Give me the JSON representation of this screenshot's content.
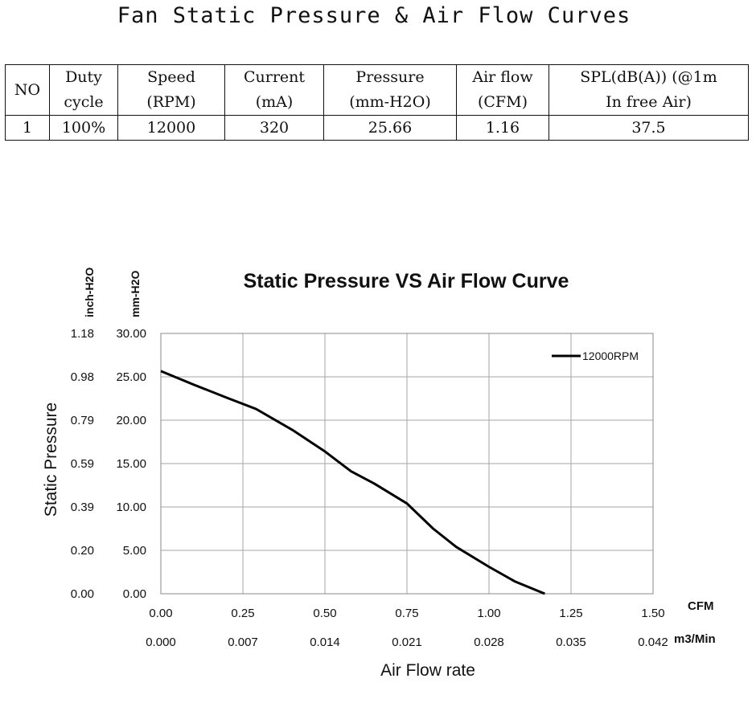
{
  "document_title": "Fan Static Pressure & Air Flow Curves",
  "spec_table": {
    "headers": [
      "NO",
      "Duty\ncycle",
      "Speed\n(RPM)",
      "Current\n(mA)",
      "Pressure\n(mm-H2O)",
      "Air flow\n(CFM)",
      "SPL(dB(A)) (@1m\nIn free Air)"
    ],
    "rows": [
      [
        "1",
        "100%",
        "12000",
        "320",
        "25.66",
        "1.16",
        "37.5"
      ]
    ]
  },
  "chart_data": {
    "type": "line",
    "title": "Static Pressure VS Air Flow Curve",
    "xlabel": "Air Flow rate",
    "ylabel": "Static Pressure",
    "x_unit_primary": "CFM",
    "x_unit_secondary": "m3/Min",
    "y_unit_primary": "mm-H2O",
    "y_unit_secondary": "inch-H2O",
    "xlim": [
      0,
      1.5
    ],
    "ylim": [
      0,
      30
    ],
    "x_ticks": [
      "0.00",
      "0.25",
      "0.50",
      "0.75",
      "1.00",
      "1.25",
      "1.50"
    ],
    "x_ticks_secondary": [
      "0.000",
      "0.007",
      "0.014",
      "0.021",
      "0.028",
      "0.035",
      "0.042"
    ],
    "y_ticks": [
      "0.00",
      "5.00",
      "10.00",
      "15.00",
      "20.00",
      "25.00",
      "30.00"
    ],
    "y_ticks_secondary": [
      "0.00",
      "0.20",
      "0.39",
      "0.59",
      "0.79",
      "0.98",
      "1.18"
    ],
    "grid": true,
    "legend_position": "top-right",
    "series": [
      {
        "name": "12000RPM",
        "color": "#000000",
        "x": [
          0.0,
          0.1,
          0.2,
          0.29,
          0.4,
          0.5,
          0.58,
          0.65,
          0.75,
          0.83,
          0.9,
          1.0,
          1.08,
          1.17
        ],
        "y": [
          25.66,
          24.1,
          22.6,
          21.3,
          18.9,
          16.4,
          14.1,
          12.7,
          10.4,
          7.5,
          5.4,
          3.1,
          1.4,
          0.0
        ]
      }
    ]
  }
}
